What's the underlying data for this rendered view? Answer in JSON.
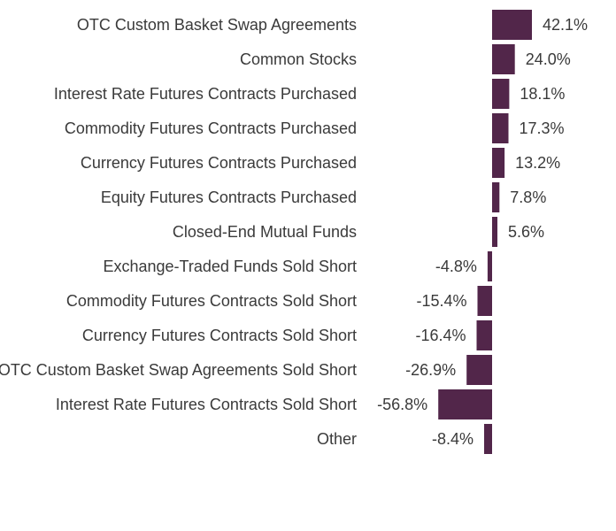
{
  "chart_data": {
    "type": "bar",
    "orientation": "horizontal",
    "bar_color": "#52264a",
    "grid": false,
    "legend": "none",
    "xlim": [
      -60,
      45
    ],
    "categories": [
      "OTC Custom Basket Swap Agreements",
      "Common Stocks",
      "Interest Rate Futures Contracts Purchased",
      "Commodity Futures Contracts Purchased",
      "Currency Futures Contracts Purchased",
      "Equity Futures Contracts Purchased",
      "Closed-End Mutual Funds",
      "Exchange-Traded Funds Sold Short",
      "Commodity Futures Contracts Sold Short",
      "Currency Futures Contracts Sold Short",
      "OTC Custom Basket Swap Agreements Sold Short",
      "Interest Rate Futures Contracts Sold Short",
      "Other"
    ],
    "values": [
      42.1,
      24.0,
      18.1,
      17.3,
      13.2,
      7.8,
      5.6,
      -4.8,
      -15.4,
      -16.4,
      -26.9,
      -56.8,
      -8.4
    ],
    "value_labels": [
      "42.1%",
      "24.0%",
      "18.1%",
      "17.3%",
      "13.2%",
      "7.8%",
      "5.6%",
      "-4.8%",
      "-15.4%",
      "-16.4%",
      "-26.9%",
      "-56.8%",
      "-8.4%"
    ]
  }
}
